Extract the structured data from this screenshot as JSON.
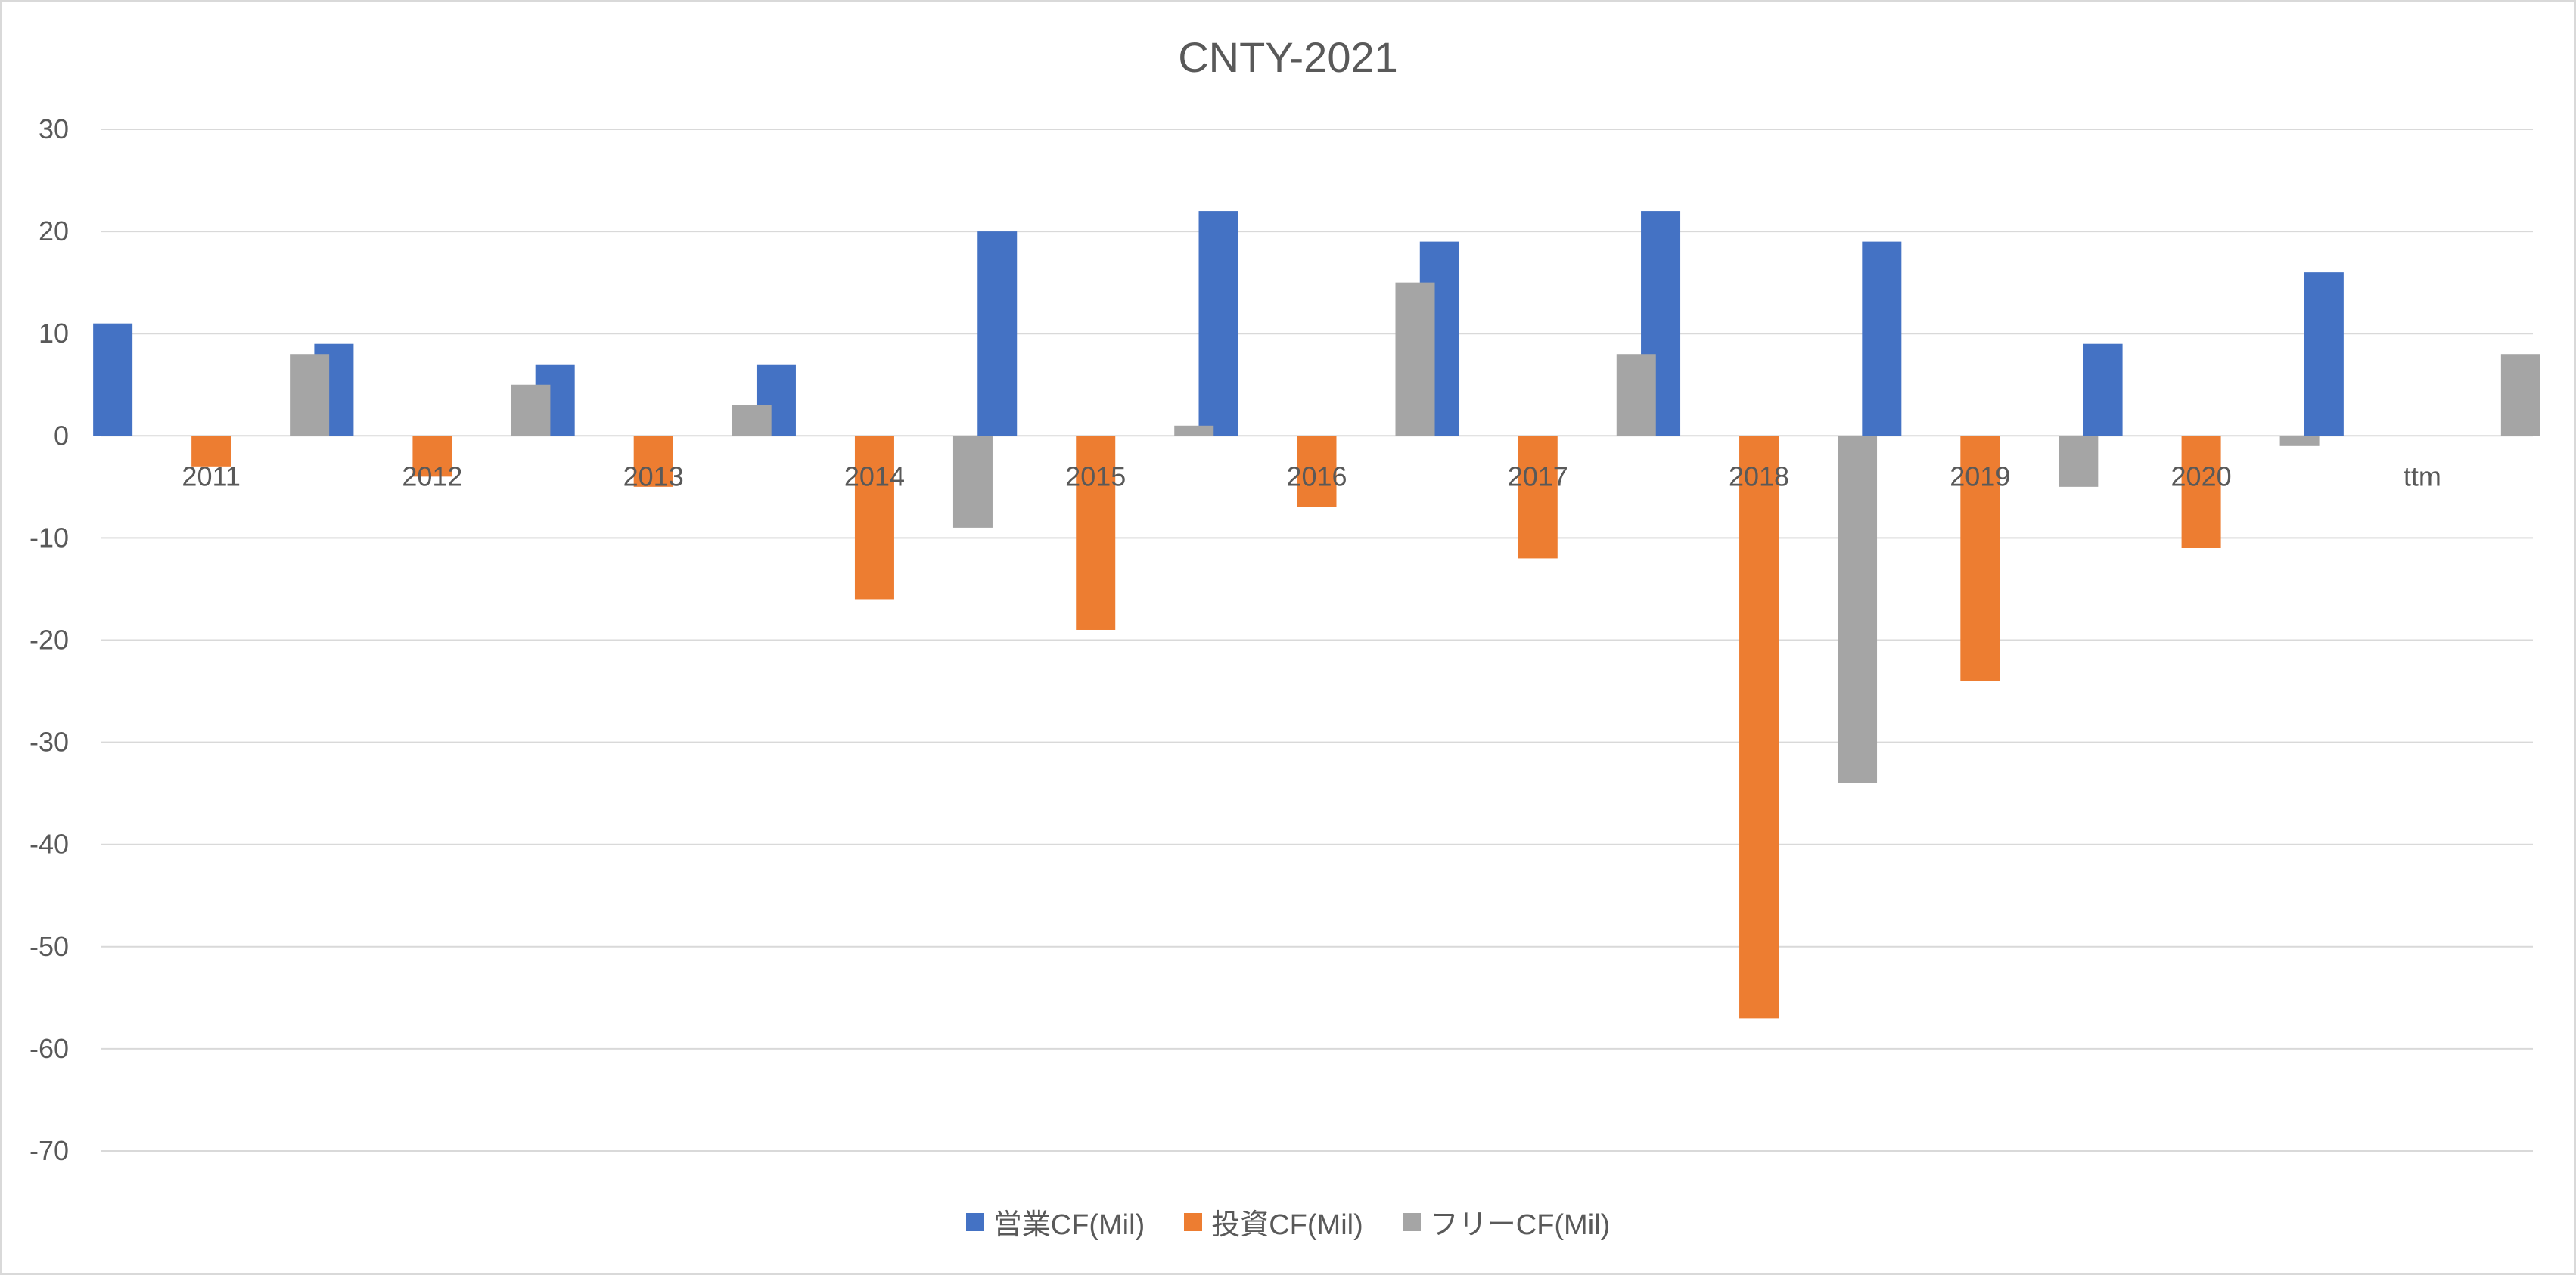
{
  "chart_data": {
    "type": "bar",
    "title": "CNTY-2021",
    "categories": [
      "2011",
      "2012",
      "2013",
      "2014",
      "2015",
      "2016",
      "2017",
      "2018",
      "2019",
      "2020",
      "ttm"
    ],
    "series": [
      {
        "name": "営業CF(Mil)",
        "color": "#4472c4",
        "values": [
          11,
          9,
          7,
          7,
          20,
          22,
          19,
          22,
          19,
          9,
          16
        ]
      },
      {
        "name": "投資CF(Mil)",
        "color": "#ed7d31",
        "values": [
          -3,
          -4,
          -5,
          -16,
          -19,
          -7,
          -12,
          -57,
          -24,
          -11,
          0
        ]
      },
      {
        "name": "フリーCF(Mil)",
        "color": "#a5a5a5",
        "values": [
          8,
          5,
          3,
          -9,
          1,
          15,
          8,
          -34,
          -5,
          -1,
          8
        ]
      }
    ],
    "ylim": [
      -70,
      30
    ],
    "yticks": [
      30,
      20,
      10,
      0,
      -10,
      -20,
      -30,
      -40,
      -50,
      -60,
      -70
    ],
    "grid": true,
    "legend_position": "bottom"
  }
}
